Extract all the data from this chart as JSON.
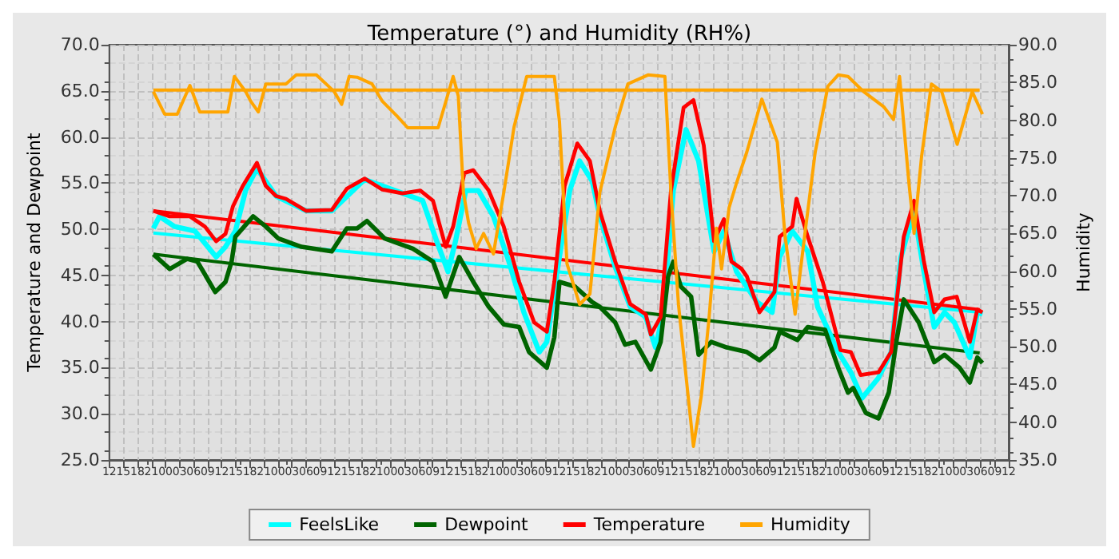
{
  "chart_data": {
    "type": "line",
    "title": "Temperature (°) and Humidity (RH%)",
    "ylabel": "Temperature and Dewpoint",
    "y2label": "Humidity",
    "legend": "bottom",
    "grid": true,
    "marker": "none",
    "xlim": [
      12,
      204
    ],
    "ylim": [
      25,
      70
    ],
    "y2lim": [
      35,
      90
    ],
    "xticks": [
      12,
      15,
      18,
      21,
      {
        "value": 24,
        "label": "00"
      },
      {
        "value": 27,
        "label": "03"
      },
      {
        "value": 30,
        "label": "06"
      },
      {
        "value": 33,
        "label": "09"
      },
      {
        "value": 36,
        "label": "12"
      },
      {
        "value": 39,
        "label": "15"
      },
      {
        "value": 42,
        "label": "18"
      },
      {
        "value": 45,
        "label": "21"
      },
      {
        "value": 48,
        "label": "00"
      },
      {
        "value": 51,
        "label": "03"
      },
      {
        "value": 54,
        "label": "06"
      },
      {
        "value": 57,
        "label": "09"
      },
      {
        "value": 60,
        "label": "12"
      },
      {
        "value": 63,
        "label": "15"
      },
      {
        "value": 66,
        "label": "18"
      },
      {
        "value": 69,
        "label": "21"
      },
      {
        "value": 72,
        "label": "00"
      },
      {
        "value": 75,
        "label": "03"
      },
      {
        "value": 78,
        "label": "06"
      },
      {
        "value": 81,
        "label": "09"
      },
      {
        "value": 84,
        "label": "12"
      },
      {
        "value": 87,
        "label": "15"
      },
      {
        "value": 90,
        "label": "18"
      },
      {
        "value": 93,
        "label": "21"
      },
      {
        "value": 96,
        "label": "00"
      },
      {
        "value": 99,
        "label": "03"
      },
      {
        "value": 102,
        "label": "06"
      },
      {
        "value": 105,
        "label": "09"
      },
      {
        "value": 108,
        "label": "12"
      },
      {
        "value": 111,
        "label": "15"
      },
      {
        "value": 114,
        "label": "18"
      },
      {
        "value": 117,
        "label": "21"
      },
      {
        "value": 120,
        "label": "00"
      },
      {
        "value": 123,
        "label": "03"
      },
      {
        "value": 126,
        "label": "06"
      },
      {
        "value": 129,
        "label": "09"
      },
      {
        "value": 132,
        "label": "12"
      },
      {
        "value": 135,
        "label": "15"
      },
      {
        "value": 138,
        "label": "18"
      },
      {
        "value": 141,
        "label": "21"
      },
      {
        "value": 144,
        "label": "00"
      },
      {
        "value": 147,
        "label": "03"
      },
      {
        "value": 150,
        "label": "06"
      },
      {
        "value": 153,
        "label": "09"
      },
      {
        "value": 156,
        "label": "12"
      },
      {
        "value": 159,
        "label": "15"
      },
      {
        "value": 162,
        "label": "18"
      },
      {
        "value": 165,
        "label": "21"
      },
      {
        "value": 168,
        "label": "00"
      },
      {
        "value": 171,
        "label": "03"
      },
      {
        "value": 174,
        "label": "06"
      },
      {
        "value": 177,
        "label": "09"
      },
      {
        "value": 180,
        "label": "12"
      },
      {
        "value": 183,
        "label": "15"
      },
      {
        "value": 186,
        "label": "18"
      },
      {
        "value": 189,
        "label": "21"
      },
      {
        "value": 192,
        "label": "00"
      },
      {
        "value": 195,
        "label": "03"
      },
      {
        "value": 198,
        "label": "06"
      },
      {
        "value": 201,
        "label": "09"
      },
      {
        "value": 204,
        "label": "12"
      }
    ],
    "yticks": [
      {
        "value": 25,
        "label": "25.0"
      },
      {
        "value": 30,
        "label": "30.0"
      },
      {
        "value": 35,
        "label": "35.0"
      },
      {
        "value": 40,
        "label": "40.0"
      },
      {
        "value": 45,
        "label": "45.0"
      },
      {
        "value": 50,
        "label": "50.0"
      },
      {
        "value": 55,
        "label": "55.0"
      },
      {
        "value": 60,
        "label": "60.0"
      },
      {
        "value": 65,
        "label": "65.0"
      },
      {
        "value": 70,
        "label": "70.0"
      }
    ],
    "y2ticks": [
      {
        "value": 35,
        "label": "35.0"
      },
      {
        "value": 40,
        "label": "40.0"
      },
      {
        "value": 45,
        "label": "45.0"
      },
      {
        "value": 50,
        "label": "50.0"
      },
      {
        "value": 55,
        "label": "55.0"
      },
      {
        "value": 60,
        "label": "60.0"
      },
      {
        "value": 65,
        "label": "65.0"
      },
      {
        "value": 70,
        "label": "70.0"
      },
      {
        "value": 75,
        "label": "75.0"
      },
      {
        "value": 80,
        "label": "80.0"
      },
      {
        "value": 85,
        "label": "85.0"
      },
      {
        "value": 90,
        "label": "90.0"
      }
    ],
    "series": [
      {
        "name": "FeelsLike",
        "color": "#00ffff",
        "x": [
          21.4,
          22.7,
          25.9,
          30.3,
          34.8,
          36.8,
          38.9,
          41.1,
          43.5,
          47.6,
          54.0,
          59.5,
          66.5,
          74.6,
          78.9,
          81.9,
          84.3,
          85.9,
          88.1,
          90.8,
          94.0,
          97.3,
          100.5,
          103.8,
          105.4,
          107.6,
          110.3,
          112.4,
          115.1,
          116.7,
          120.0,
          123.2,
          126.5,
          128.6,
          130.3,
          132.4,
          135.1,
          137.8,
          141.1,
          143.2,
          145.9,
          150.3,
          153.5,
          155.1,
          157.8,
          161.1,
          163.2,
          167.6,
          170.3,
          172.7,
          176.2,
          178.9,
          181.0,
          183.8,
          185.9,
          188.1,
          190.3,
          192.4,
          195.7,
          197.3,
          198.4
        ],
        "values": [
          50.1,
          51.4,
          50.3,
          49.8,
          47.0,
          48.1,
          49.8,
          54.2,
          56.6,
          53.6,
          52.0,
          52.0,
          55.4,
          53.9,
          53.1,
          48.7,
          45.4,
          48.7,
          54.2,
          54.2,
          51.4,
          46.5,
          41.0,
          36.7,
          37.8,
          45.4,
          54.2,
          57.4,
          55.2,
          51.4,
          45.9,
          41.6,
          40.5,
          37.2,
          41.0,
          54.2,
          60.8,
          57.4,
          47.6,
          49.8,
          45.4,
          42.1,
          41.0,
          47.0,
          49.8,
          47.6,
          41.6,
          36.7,
          34.5,
          31.7,
          33.9,
          36.7,
          47.0,
          52.0,
          45.4,
          39.4,
          41.0,
          39.9,
          36.1,
          41.0,
          40.8
        ]
      },
      {
        "name": "Dewpoint",
        "color": "#006400",
        "x": [
          21.4,
          24.9,
          28.6,
          30.8,
          34.6,
          36.8,
          38.1,
          38.9,
          42.7,
          45.4,
          48.1,
          53.0,
          59.5,
          62.7,
          64.9,
          67.0,
          70.8,
          76.8,
          81.1,
          83.8,
          86.7,
          89.7,
          93.0,
          96.2,
          99.5,
          101.6,
          105.4,
          107.0,
          108.1,
          111.4,
          115.1,
          116.7,
          120.0,
          122.1,
          124.3,
          127.6,
          129.7,
          131.3,
          132.4,
          134.0,
          136.2,
          137.8,
          140.5,
          143.8,
          148.1,
          150.8,
          154.0,
          155.1,
          158.9,
          161.1,
          164.8,
          167.6,
          169.7,
          170.8,
          173.5,
          176.2,
          178.4,
          180.0,
          181.6,
          184.8,
          188.1,
          190.3,
          193.5,
          195.7,
          197.3,
          198.4
        ],
        "values": [
          47.3,
          45.7,
          46.8,
          46.5,
          43.2,
          44.3,
          46.5,
          49.2,
          51.4,
          50.3,
          49.0,
          48.1,
          47.6,
          50.1,
          50.1,
          50.9,
          49.0,
          47.9,
          46.5,
          42.7,
          47.0,
          44.3,
          41.6,
          39.7,
          39.4,
          36.7,
          35.0,
          38.3,
          44.3,
          43.8,
          42.1,
          41.6,
          39.9,
          37.5,
          37.8,
          34.8,
          37.8,
          44.9,
          46.5,
          43.8,
          42.7,
          36.4,
          37.8,
          37.2,
          36.7,
          35.8,
          37.2,
          38.9,
          38.0,
          39.4,
          39.1,
          35.0,
          32.3,
          32.8,
          30.1,
          29.5,
          32.3,
          37.8,
          42.4,
          39.9,
          35.6,
          36.4,
          35.0,
          33.4,
          36.1,
          35.5
        ]
      },
      {
        "name": "Temperature",
        "color": "#ff0000",
        "x": [
          21.4,
          24.9,
          29.2,
          32.4,
          34.8,
          36.8,
          38.4,
          40.5,
          43.5,
          45.4,
          47.6,
          49.7,
          54.0,
          59.5,
          62.7,
          66.5,
          70.3,
          74.6,
          78.4,
          81.1,
          83.8,
          85.4,
          87.8,
          89.7,
          93.0,
          96.2,
          99.5,
          102.7,
          105.4,
          107.0,
          109.2,
          111.9,
          114.6,
          116.7,
          120.0,
          123.2,
          126.5,
          127.6,
          129.7,
          131.9,
          134.6,
          136.7,
          138.9,
          141.1,
          143.2,
          144.8,
          147.0,
          148.1,
          150.8,
          154.0,
          155.1,
          157.8,
          158.7,
          161.1,
          164.3,
          168.1,
          170.3,
          172.4,
          176.2,
          178.9,
          181.6,
          183.8,
          185.9,
          188.1,
          190.3,
          192.9,
          195.7,
          197.3,
          198.4
        ],
        "values": [
          52.0,
          51.4,
          51.4,
          50.3,
          48.7,
          49.5,
          52.5,
          54.7,
          57.2,
          54.7,
          53.6,
          53.3,
          52.0,
          52.1,
          54.4,
          55.5,
          54.3,
          53.9,
          54.2,
          53.1,
          48.1,
          50.3,
          56.1,
          56.4,
          54.2,
          50.3,
          44.3,
          39.9,
          38.9,
          44.3,
          54.7,
          59.3,
          57.4,
          52.0,
          46.5,
          41.9,
          40.8,
          38.6,
          40.5,
          54.2,
          63.2,
          64.0,
          59.1,
          48.7,
          51.1,
          46.5,
          45.7,
          44.9,
          41.0,
          43.2,
          49.2,
          50.3,
          53.3,
          49.2,
          44.3,
          36.9,
          36.7,
          34.2,
          34.5,
          36.7,
          49.2,
          53.1,
          46.5,
          41.0,
          42.4,
          42.7,
          37.8,
          41.3,
          41.0
        ]
      },
      {
        "name": "Humidity",
        "color": "#ffa500",
        "axis": "y2",
        "x": [
          21.4,
          23.8,
          26.5,
          29.2,
          31.3,
          37.3,
          38.7,
          41.1,
          42.2,
          43.8,
          45.4,
          49.7,
          51.9,
          56.2,
          60.0,
          61.6,
          63.2,
          64.9,
          68.1,
          70.3,
          73.5,
          75.7,
          82.2,
          85.4,
          86.5,
          87.6,
          88.7,
          90.3,
          91.9,
          94.0,
          96.2,
          98.4,
          101.1,
          107.0,
          108.1,
          109.7,
          112.4,
          114.6,
          116.7,
          120.0,
          122.7,
          127.0,
          130.6,
          131.9,
          133.5,
          135.1,
          136.7,
          138.4,
          140.0,
          141.6,
          142.7,
          144.3,
          145.9,
          148.1,
          151.3,
          154.6,
          156.2,
          158.4,
          160.5,
          162.7,
          165.4,
          167.6,
          169.7,
          173.0,
          177.3,
          179.4,
          180.7,
          182.7,
          183.8,
          185.4,
          187.5,
          189.7,
          193.0,
          196.2,
          198.4
        ],
        "values": [
          83.8,
          80.8,
          80.8,
          84.6,
          81.1,
          81.1,
          85.8,
          83.8,
          82.5,
          81.1,
          84.8,
          84.8,
          86.0,
          86.0,
          83.8,
          82.1,
          85.8,
          85.7,
          84.8,
          82.5,
          80.5,
          79.0,
          79.0,
          85.8,
          83.2,
          70.4,
          66.4,
          63.0,
          65.0,
          62.3,
          70.4,
          79.1,
          85.8,
          85.8,
          79.8,
          61.0,
          55.6,
          57.0,
          70.4,
          79.1,
          84.8,
          86.0,
          85.8,
          70.4,
          55.6,
          46.2,
          36.8,
          43.6,
          53.6,
          65.7,
          60.3,
          68.4,
          71.7,
          75.8,
          82.8,
          77.1,
          65.0,
          54.3,
          65.0,
          75.8,
          84.5,
          86.0,
          85.8,
          83.8,
          81.8,
          80.1,
          85.8,
          71.7,
          65.0,
          75.2,
          84.8,
          83.8,
          76.8,
          83.8,
          80.8
        ]
      },
      {
        "type": "line",
        "color": "#00ffff",
        "x": [
          21.4,
          197.8
        ],
        "values": [
          49.6,
          41.0
        ]
      },
      {
        "type": "line",
        "color": "#006400",
        "x": [
          21.4,
          197.8
        ],
        "values": [
          47.3,
          36.6
        ]
      },
      {
        "type": "line",
        "color": "#ff0000",
        "x": [
          21.4,
          197.8
        ],
        "values": [
          52.0,
          41.3
        ]
      },
      {
        "type": "line",
        "color": "#ffa500",
        "axis": "y2",
        "x": [
          21.4,
          197.8
        ],
        "values": [
          84.0,
          84.0
        ]
      }
    ]
  }
}
